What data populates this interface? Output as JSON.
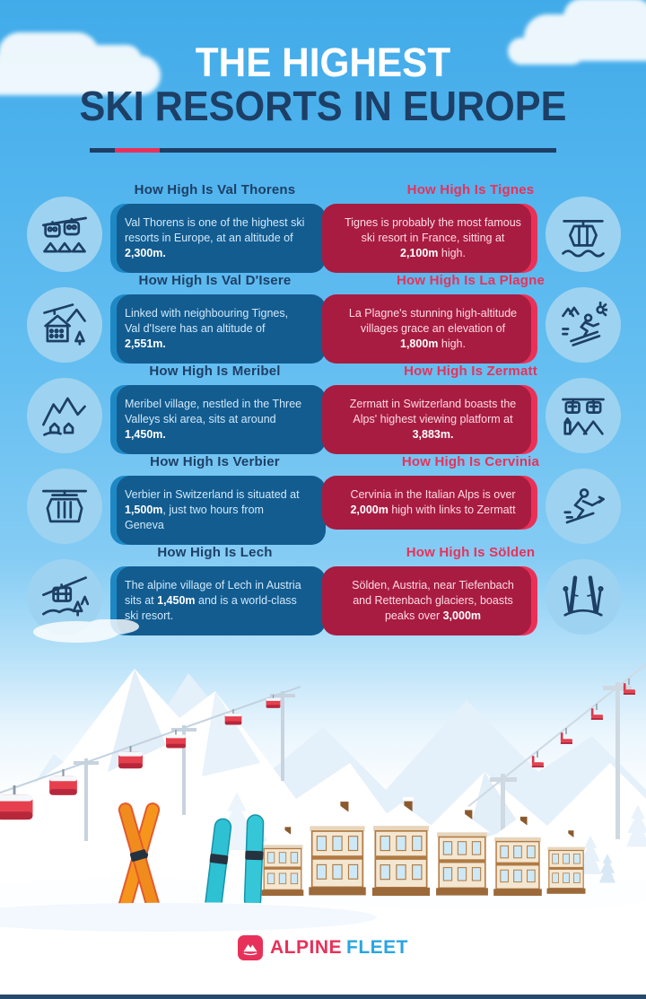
{
  "title": {
    "line1": "THE HIGHEST",
    "line2": "SKI RESORTS IN EUROPE"
  },
  "rows": [
    {
      "left": {
        "heading": "How High Is Val Thorens",
        "icon": "gondola-pair-icon",
        "body": [
          {
            "t": "Val Thorens is one of the highest ski resorts in Europe, at an altitude of ",
            "b": false
          },
          {
            "t": "2,300m.",
            "b": true
          }
        ]
      },
      "right": {
        "heading": "How High Is Tignes",
        "icon": "gondola-icon",
        "body": [
          {
            "t": "Tignes is probably the most famous ski resort in France, sitting at ",
            "b": false
          },
          {
            "t": "2,100m",
            "b": true
          },
          {
            "t": " high.",
            "b": false
          }
        ]
      }
    },
    {
      "left": {
        "heading": "How High Is Val D'Isere",
        "icon": "chalet-icon",
        "body": [
          {
            "t": "Linked with neighbouring Tignes, Val d'Isere has an altitude of ",
            "b": false
          },
          {
            "t": "2,551m.",
            "b": true
          }
        ]
      },
      "right": {
        "heading": "How High Is La Plagne",
        "icon": "skier-downhill-icon",
        "body": [
          {
            "t": "La Plagne's stunning high-altitude villages grace an elevation of ",
            "b": false
          },
          {
            "t": "1,800m",
            "b": true
          },
          {
            "t": " high.",
            "b": false
          }
        ]
      }
    },
    {
      "left": {
        "heading": "How High Is Meribel",
        "icon": "mountain-village-icon",
        "body": [
          {
            "t": "Meribel village, nestled in the Three Valleys ski area, sits at around ",
            "b": false
          },
          {
            "t": "1,450m.",
            "b": true
          }
        ]
      },
      "right": {
        "heading": "How High Is Zermatt",
        "icon": "cable-cars-icon",
        "body": [
          {
            "t": "Zermatt in Switzerland boasts the Alps' highest viewing platform at ",
            "b": false
          },
          {
            "t": "3,883m.",
            "b": true
          }
        ]
      }
    },
    {
      "left": {
        "heading": "How High Is Verbier",
        "icon": "gondola-cabin-icon",
        "body": [
          {
            "t": "Verbier in Switzerland is situated at ",
            "b": false
          },
          {
            "t": "1,500m",
            "b": true
          },
          {
            "t": ", just two hours from Geneva",
            "b": false
          }
        ]
      },
      "right": {
        "heading": "How High Is Cervinia",
        "icon": "skier-tuck-icon",
        "body": [
          {
            "t": "Cervinia in the Italian Alps is over ",
            "b": false
          },
          {
            "t": "2,000m",
            "b": true
          },
          {
            "t": " high with links to Zermatt",
            "b": false
          }
        ]
      }
    },
    {
      "left": {
        "heading": "How High Is Lech",
        "icon": "slope-cable-car-icon",
        "body": [
          {
            "t": "The alpine village of Lech in Austria sits at ",
            "b": false
          },
          {
            "t": "1,450m",
            "b": true
          },
          {
            "t": " and is a world-class ski resort.",
            "b": false
          }
        ]
      },
      "right": {
        "heading": "How High Is Sölden",
        "icon": "standing-skis-icon",
        "body": [
          {
            "t": "Sölden, Austria, near Tiefenbach and Rettenbach glaciers, boasts peaks over ",
            "b": false
          },
          {
            "t": "3,000m",
            "b": true
          }
        ]
      }
    }
  ],
  "footer": {
    "brand_first": "ALPINE",
    "brand_second": "FLEET",
    "logo_icon": "mountain-logo-icon"
  },
  "colors": {
    "sky": "#47b0ec",
    "navy": "#1d3f66",
    "blue_card": "#1e88c4",
    "red_card": "#e93158",
    "red_fold": "#a81c41",
    "blue_fold": "#135c90",
    "brand_blue": "#2aa5e1"
  }
}
